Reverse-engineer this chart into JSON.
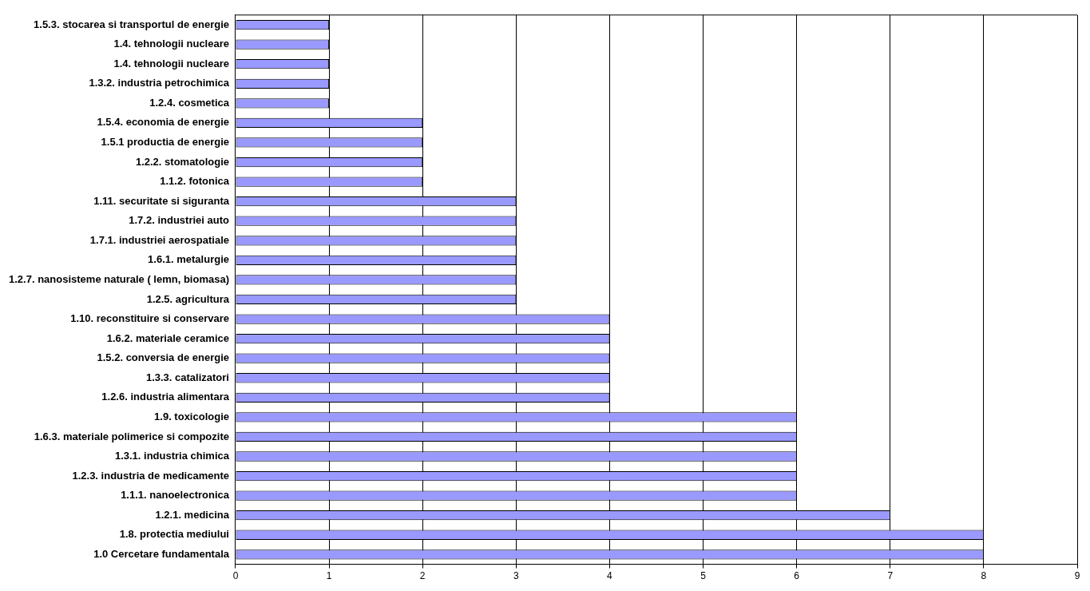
{
  "chart_data": {
    "type": "bar",
    "orientation": "horizontal",
    "color": "#9999ff",
    "categories": [
      "1.5.3. stocarea si transportul de energie",
      "1.4. tehnologii nucleare",
      "1.4. tehnologii nucleare",
      "1.3.2. industria petrochimica",
      "1.2.4. cosmetica",
      "1.5.4. economia de energie",
      "1.5.1 productia de energie",
      "1.2.2. stomatologie",
      "1.1.2. fotonica",
      "1.11. securitate si siguranta",
      "1.7.2. industriei auto",
      "1.7.1. industriei aerospatiale",
      "1.6.1. metalurgie",
      "1.2.7. nanosisteme naturale ( lemn, biomasa)",
      "1.2.5. agricultura",
      "1.10. reconstituire si conservare",
      "1.6.2. materiale ceramice",
      "1.5.2. conversia de energie",
      "1.3.3. catalizatori",
      "1.2.6. industria alimentara",
      "1.9. toxicologie",
      "1.6.3. materiale polimerice si compozite",
      "1.3.1. industria chimica",
      "1.2.3. industria de medicamente",
      "1.1.1. nanoelectronica",
      "1.2.1. medicina",
      "1.8. protectia mediului",
      "1.0 Cercetare fundamentala"
    ],
    "values": [
      1,
      1,
      1,
      1,
      1,
      2,
      2,
      2,
      2,
      3,
      3,
      3,
      3,
      3,
      3,
      4,
      4,
      4,
      4,
      4,
      6,
      6,
      6,
      6,
      6,
      7,
      8,
      8
    ],
    "xlim": [
      0,
      9
    ],
    "xticks": [
      0,
      1,
      2,
      3,
      4,
      5,
      6,
      7,
      8,
      9
    ],
    "grid": "x",
    "legend": false
  }
}
